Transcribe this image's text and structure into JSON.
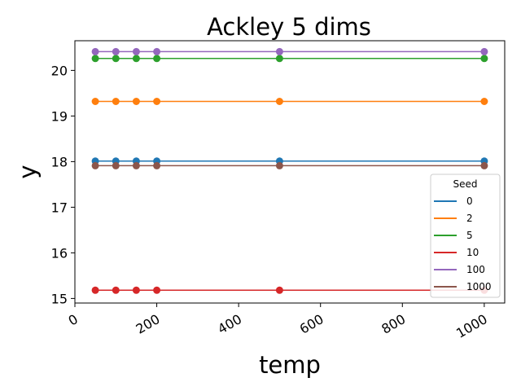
{
  "chart_data": {
    "type": "line",
    "title": "Ackley 5 dims",
    "xlabel": "temp",
    "ylabel": "y",
    "xlim": [
      0,
      1050
    ],
    "ylim": [
      14.9,
      20.65
    ],
    "x_ticks": [
      0,
      200,
      400,
      600,
      800,
      1000
    ],
    "y_ticks": [
      15,
      16,
      17,
      18,
      19,
      20
    ],
    "x": [
      50,
      100,
      150,
      200,
      500,
      1000
    ],
    "grid": false,
    "legend": {
      "title": "Seed",
      "placement": "lower-right"
    },
    "series": [
      {
        "name": "0",
        "color": "#1f77b4",
        "values": [
          18.01,
          18.01,
          18.01,
          18.01,
          18.01,
          18.01
        ]
      },
      {
        "name": "2",
        "color": "#ff7f0e",
        "values": [
          19.32,
          19.32,
          19.32,
          19.32,
          19.32,
          19.32
        ]
      },
      {
        "name": "5",
        "color": "#2ca02c",
        "values": [
          20.26,
          20.26,
          20.26,
          20.26,
          20.26,
          20.26
        ]
      },
      {
        "name": "10",
        "color": "#d62728",
        "values": [
          15.18,
          15.18,
          15.18,
          15.18,
          15.18,
          15.18
        ]
      },
      {
        "name": "100",
        "color": "#9467bd",
        "values": [
          20.41,
          20.41,
          20.41,
          20.41,
          20.41,
          20.41
        ]
      },
      {
        "name": "1000",
        "color": "#8c564b",
        "values": [
          17.91,
          17.91,
          17.91,
          17.91,
          17.91,
          17.91
        ]
      }
    ]
  }
}
